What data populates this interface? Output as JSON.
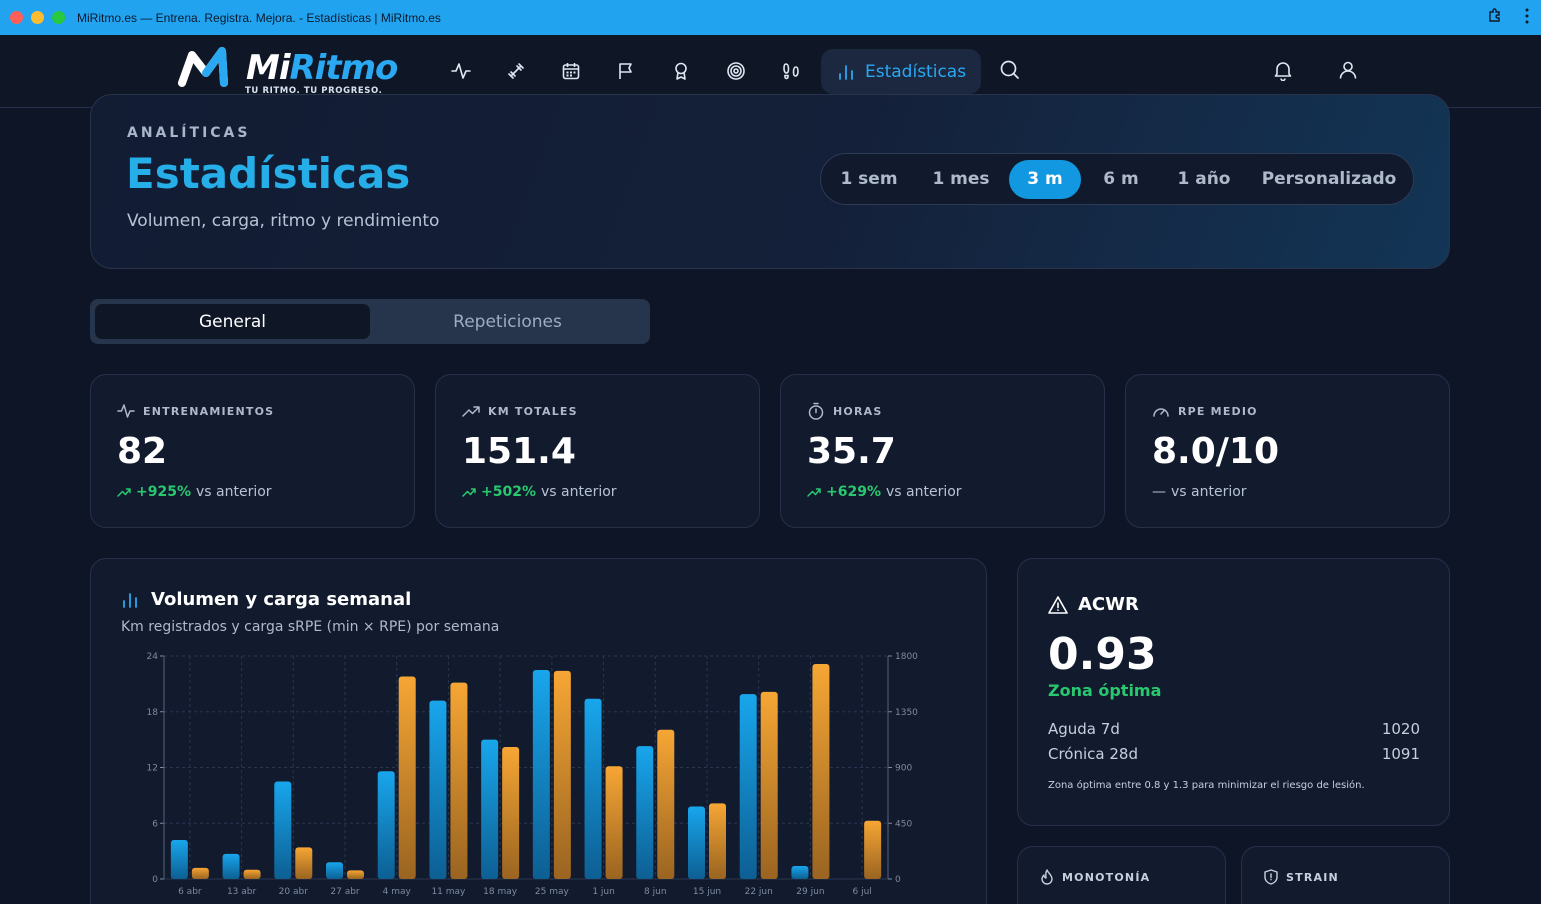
{
  "browser": {
    "tab_title": "MiRitmo.es — Entrena. Registra. Mejora. - Estadísticas | MiRitmo.es"
  },
  "nav": {
    "logo_prefix": "Mi",
    "logo_accent": "Ritmo",
    "logo_tagline": "TU RITMO. TU PROGRESO.",
    "icons": [
      "activity-icon",
      "dumbbell-icon",
      "calendar-icon",
      "flag-icon",
      "award-icon",
      "target-icon",
      "footprints-icon"
    ],
    "active_label": "Estadísticas"
  },
  "header": {
    "eyebrow": "ANALÍTICAS",
    "title": "Estadísticas",
    "subtitle": "Volumen, carga, ritmo y rendimiento",
    "ranges": [
      "1 sem",
      "1 mes",
      "3 m",
      "6 m",
      "1 año",
      "Personalizado"
    ],
    "active_range": "3 m"
  },
  "tabs": {
    "general": "General",
    "repeticiones": "Repeticiones",
    "active": "General"
  },
  "kpis": [
    {
      "label": "ENTRENAMIENTOS",
      "value": "82",
      "delta": "+925%",
      "suffix": "vs anterior",
      "icon": "activity-icon"
    },
    {
      "label": "KM TOTALES",
      "value": "151.4",
      "delta": "+502%",
      "suffix": "vs anterior",
      "icon": "trending-up-icon"
    },
    {
      "label": "HORAS",
      "value": "35.7",
      "delta": "+629%",
      "suffix": "vs anterior",
      "icon": "stopwatch-icon"
    },
    {
      "label": "RPE MEDIO",
      "value": "8.0/10",
      "delta": "—",
      "suffix": "vs anterior",
      "icon": "gauge-icon"
    }
  ],
  "chart_card": {
    "title": "Volumen y carga semanal",
    "subtitle": "Km registrados y carga sRPE (min × RPE) por semana"
  },
  "chart_data": {
    "type": "bar",
    "categories": [
      "6 abr",
      "13 abr",
      "20 abr",
      "27 abr",
      "4 may",
      "11 may",
      "18 may",
      "25 may",
      "1 jun",
      "8 jun",
      "15 jun",
      "22 jun",
      "29 jun",
      "6 jul"
    ],
    "series": [
      {
        "axis": "left",
        "color": "#16a2e8",
        "values": [
          4.2,
          2.7,
          10.5,
          1.8,
          11.6,
          19.2,
          15.0,
          22.5,
          19.4,
          14.3,
          7.8,
          19.9,
          1.4,
          0
        ]
      },
      {
        "axis": "right",
        "color": "#f0a030",
        "values": [
          90,
          75,
          255,
          70,
          1635,
          1585,
          1065,
          1680,
          910,
          1205,
          610,
          1510,
          1735,
          470
        ]
      }
    ],
    "y_left": {
      "ticks": [
        0,
        6,
        12,
        18,
        24
      ],
      "lim": [
        0,
        24
      ]
    },
    "y_right": {
      "ticks": [
        0,
        450,
        900,
        1350,
        1800
      ],
      "lim": [
        0,
        1800
      ]
    },
    "grid": true
  },
  "acwr": {
    "title": "ACWR",
    "value": "0.93",
    "zone": "Zona óptima",
    "rows": [
      {
        "label": "Aguda 7d",
        "value": "1020"
      },
      {
        "label": "Crónica 28d",
        "value": "1091"
      }
    ],
    "note": "Zona óptima entre 0.8 y 1.3 para minimizar el riesgo de lesión."
  },
  "mini_cards": [
    {
      "label": "MONOTONÍA",
      "icon": "flame-icon"
    },
    {
      "label": "STRAIN",
      "icon": "shield-icon"
    }
  ]
}
